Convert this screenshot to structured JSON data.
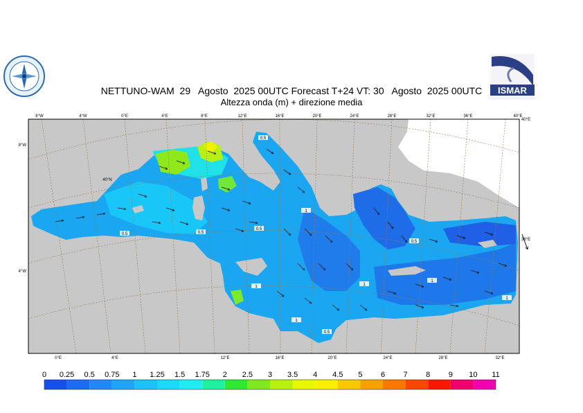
{
  "title": {
    "line1": "NETTUNO-WAM  29   Agosto  2025 00UTC Forecast T+24 VT: 30   Agosto  2025 00UTC",
    "line2": "Altezza onda (m) + direzione media"
  },
  "logos": {
    "left": "Servizio Meteorologico",
    "right": "ISMAR"
  },
  "map": {
    "top_lon_labels": [
      "8°W",
      "4°W",
      "0°E",
      "4°E",
      "8°E",
      "12°E",
      "16°E",
      "20°E",
      "24°E",
      "28°E",
      "32°E",
      "36°E",
      "40°E"
    ],
    "bottom_lon_labels": [
      "0°E",
      "4°E",
      "12°E",
      "16°E",
      "20°E",
      "24°E",
      "28°E",
      "32°E"
    ],
    "left_lat_labels": [
      "8°W",
      "4°W"
    ],
    "right_lat_labels": [
      "40°E",
      "38°E"
    ],
    "inner_labels": [
      "40°N"
    ],
    "contour_labels": [
      "0.5",
      "1",
      "0.5",
      "1",
      "1",
      "0.5",
      "1",
      "0.5",
      "1",
      "1",
      "0.5",
      "0.5"
    ],
    "colors": {
      "land": "#c8c8c8",
      "sea_low": "#1f6fe8",
      "sea_mid": "#12a8f2",
      "sea_high": "#8fe81a",
      "peak": "#f0f000",
      "grid": "#9a7a4a"
    }
  },
  "legend": {
    "labels": [
      "0",
      "0.25",
      "0.5",
      "0.75",
      "1",
      "1.25",
      "1.5",
      "1.75",
      "2",
      "2.5",
      "3",
      "3.5",
      "4",
      "4.5",
      "5",
      "6",
      "7",
      "8",
      "9",
      "10",
      "11"
    ],
    "colors": [
      "#1550e8",
      "#1a6cf0",
      "#1f88f6",
      "#20a4f8",
      "#1cc0fa",
      "#1cd8fa",
      "#20ecf2",
      "#1ef0a0",
      "#30e830",
      "#80e820",
      "#b8f010",
      "#e8f800",
      "#f8f000",
      "#f8c800",
      "#f8a000",
      "#f87800",
      "#f84800",
      "#f81800",
      "#f0006c",
      "#f000b0",
      "#f020e8"
    ]
  }
}
